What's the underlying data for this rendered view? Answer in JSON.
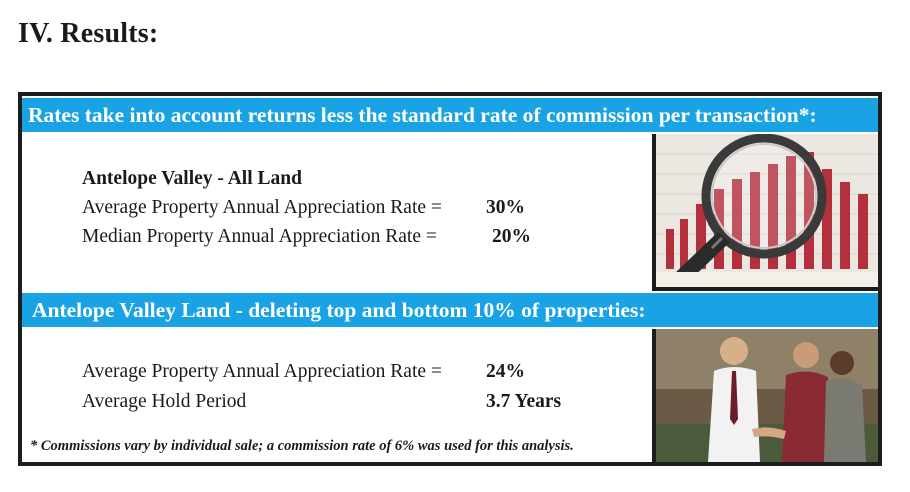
{
  "heading": "IV.  Results:",
  "section1": {
    "banner": "Rates take into account returns less the standard rate of commission per transaction*:",
    "subtitle": "Antelope Valley - All Land",
    "avg_label": "Average Property Annual Appreciation Rate =",
    "avg_value": "30%",
    "median_label": "Median Property Annual Appreciation Rate =",
    "median_value": "20%"
  },
  "section2": {
    "banner": "Antelope Valley Land - deleting top and bottom 10% of properties:",
    "avg_label": "Average Property Annual Appreciation Rate =",
    "avg_value": "24%",
    "hold_label": "Average Hold Period",
    "hold_value": "3.7 Years",
    "footnote": "* Commissions vary by individual sale; a commission rate of 6% was used for this analysis."
  },
  "images": {
    "photo1": "magnifying-glass-over-bar-chart-photo",
    "photo2": "handshake-people-photo"
  },
  "colors": {
    "banner": "#1aa3e4",
    "frame": "#1d1d1d"
  }
}
